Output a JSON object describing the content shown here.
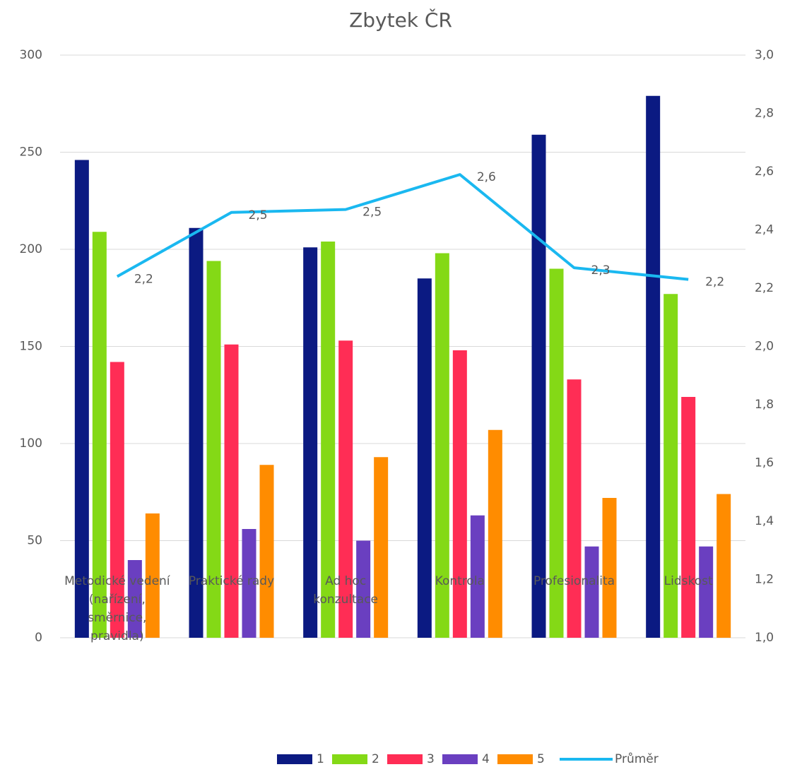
{
  "chart_data": {
    "type": "bar",
    "title": "Zbytek ČR",
    "categories": [
      "Metodické vedení (nařízení, směrnice, pravidla)",
      "Praktické rady",
      "Ad hoc konzultace",
      "Kontrola",
      "Profesionalita",
      "Lidskost"
    ],
    "series": [
      {
        "name": "1",
        "color": "#0b1a82",
        "values": [
          246,
          211,
          201,
          185,
          259,
          279
        ]
      },
      {
        "name": "2",
        "color": "#84d916",
        "values": [
          209,
          194,
          204,
          198,
          190,
          177
        ]
      },
      {
        "name": "3",
        "color": "#ff2d55",
        "values": [
          142,
          151,
          153,
          148,
          133,
          124
        ]
      },
      {
        "name": "4",
        "color": "#6a3fc0",
        "values": [
          40,
          56,
          50,
          63,
          47,
          47
        ]
      },
      {
        "name": "5",
        "color": "#ff8c00",
        "values": [
          64,
          89,
          93,
          107,
          72,
          74
        ]
      },
      {
        "name": "Průměr",
        "color": "#1ab8f0",
        "type": "line",
        "axis": "y2",
        "values": [
          2.24,
          2.46,
          2.47,
          2.59,
          2.27,
          2.23
        ],
        "value_labels": [
          "2,2",
          "2,5",
          "2,5",
          "2,6",
          "2,3",
          "2,2"
        ]
      }
    ],
    "ylim": [
      0,
      300
    ],
    "yticks": [
      0,
      50,
      100,
      150,
      200,
      250,
      300
    ],
    "y2lim": [
      1,
      3
    ],
    "y2ticks": [
      {
        "value": 1,
        "label": "1,0"
      },
      {
        "value": 1.2,
        "label": "1,2"
      },
      {
        "value": 1.4,
        "label": "1,4"
      },
      {
        "value": 1.6,
        "label": "1,6"
      },
      {
        "value": 1.8,
        "label": "1,8"
      },
      {
        "value": 2,
        "label": "2,0"
      },
      {
        "value": 2.2,
        "label": "2,2"
      },
      {
        "value": 2.4,
        "label": "2,4"
      },
      {
        "value": 2.6,
        "label": "2,6"
      },
      {
        "value": 2.8,
        "label": "2,8"
      },
      {
        "value": 3,
        "label": "3,0"
      }
    ],
    "grid": true,
    "legend": "bottom"
  }
}
